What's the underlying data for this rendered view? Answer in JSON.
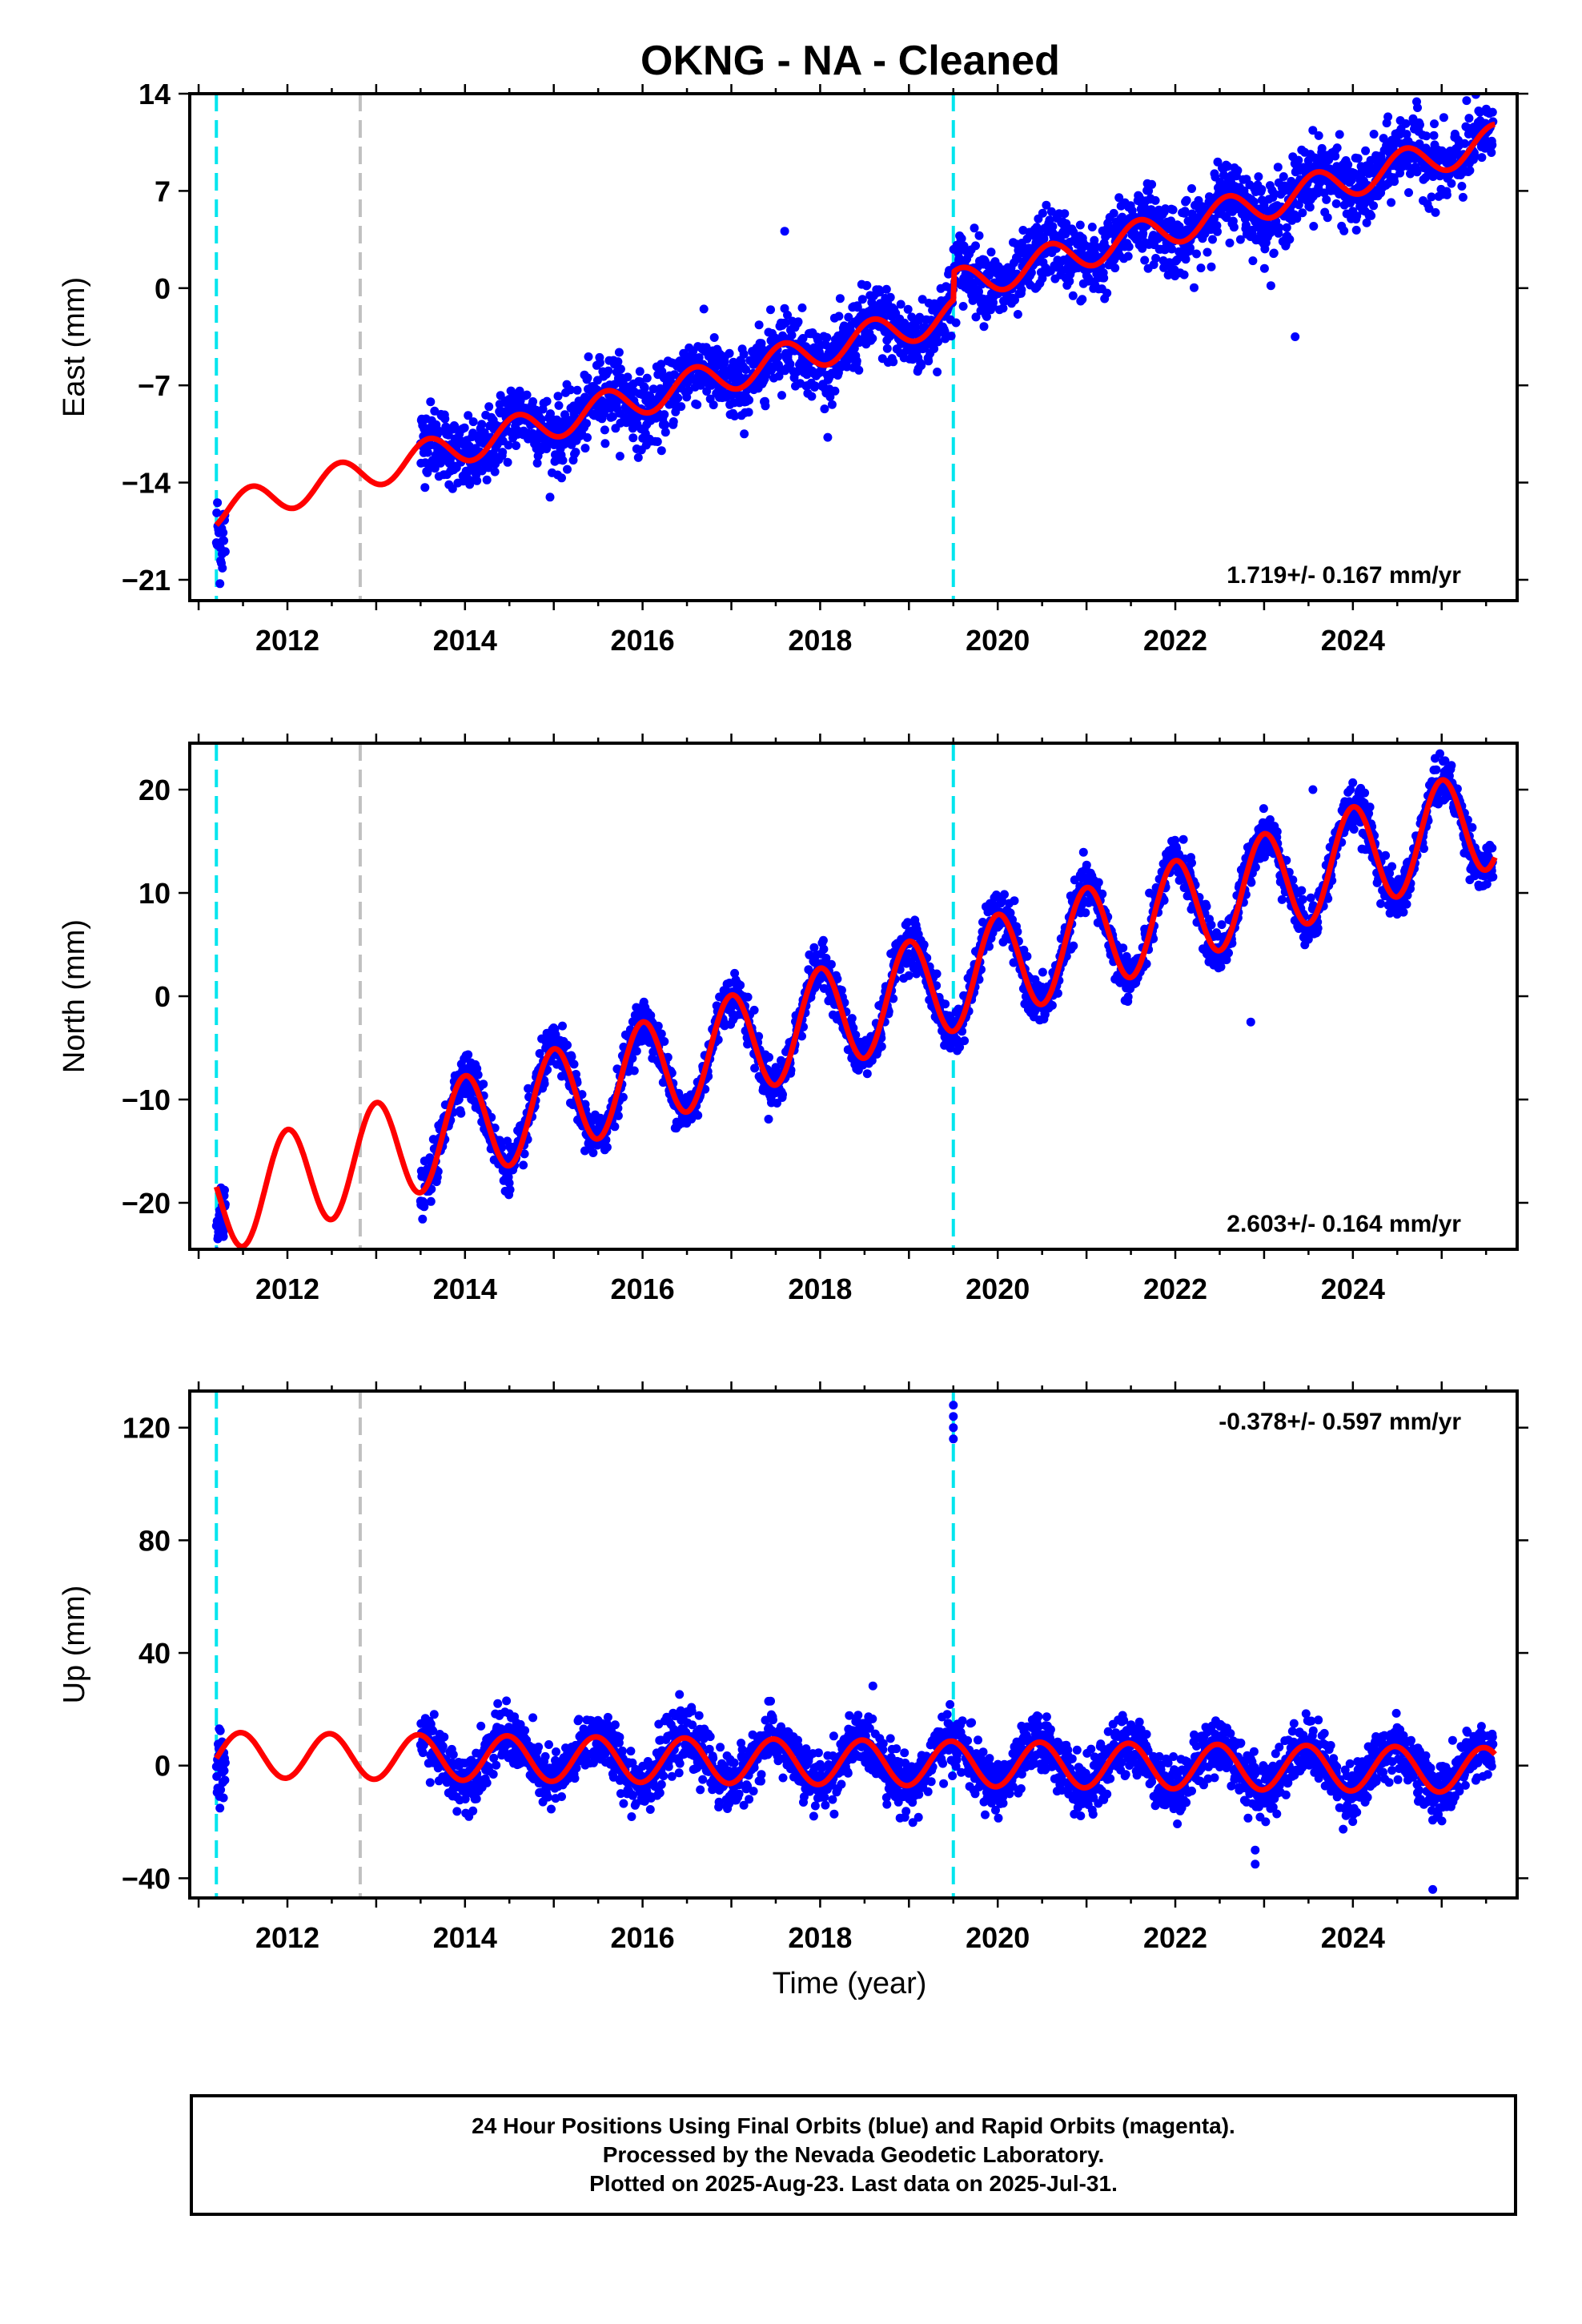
{
  "title": "OKNG  - NA - Cleaned",
  "xlabel": "Time (year)",
  "footer": {
    "line1": "24 Hour Positions Using Final Orbits (blue) and Rapid Orbits (magenta).",
    "line2": "Processed by the Nevada Geodetic Laboratory.",
    "line3": "Plotted on 2025-Aug-23. Last data on 2025-Jul-31."
  },
  "colors": {
    "data": "#0000ff",
    "model": "#ff0000",
    "equipment_change": "#00e5ee",
    "other_change": "#c0c0c0",
    "frame": "#000000"
  },
  "chart_data": [
    {
      "type": "scatter",
      "name": "east",
      "ylabel": "East (mm)",
      "xlim": [
        2010.9,
        2025.85
      ],
      "ylim": [
        -22.5,
        14
      ],
      "yticks": [
        -21,
        -14,
        -7,
        0,
        7,
        14
      ],
      "xticks": [
        2012,
        2014,
        2016,
        2018,
        2020,
        2022,
        2024
      ],
      "rate_label": "1.719+/- 0.167 mm/yr",
      "rate_position": "bottom-right",
      "dashed_lines": [
        {
          "x": 2011.2,
          "color": "cyan"
        },
        {
          "x": 2012.82,
          "color": "gray"
        },
        {
          "x": 2019.5,
          "color": "cyan"
        }
      ],
      "model_steps": [
        {
          "x": 2019.5,
          "delta": 2
        }
      ],
      "data_start": 2013.5,
      "data_end": 2025.58,
      "early_data": {
        "start": 2011.2,
        "end": 2011.3,
        "y": -17.8
      },
      "trend_rate": 1.719,
      "trend_intercept_at_2016": -7.9,
      "seasonal_amplitude": 1.2,
      "seasonal_phase": 2.6,
      "noise": 1.3,
      "outliers": [
        {
          "x": 2017.6,
          "y": 4.1
        },
        {
          "x": 2023.35,
          "y": -3.5
        }
      ]
    },
    {
      "type": "scatter",
      "name": "north",
      "ylabel": "North (mm)",
      "xlim": [
        2010.9,
        2025.85
      ],
      "ylim": [
        -24.5,
        24.5
      ],
      "yticks": [
        -20,
        -10,
        0,
        10,
        20
      ],
      "xticks": [
        2012,
        2014,
        2016,
        2018,
        2020,
        2022,
        2024
      ],
      "rate_label": "2.603+/- 0.164 mm/yr",
      "rate_position": "bottom-right",
      "dashed_lines": [
        {
          "x": 2011.2,
          "color": "cyan"
        },
        {
          "x": 2012.82,
          "color": "gray"
        },
        {
          "x": 2019.5,
          "color": "cyan"
        }
      ],
      "model_steps": [],
      "data_start": 2013.5,
      "data_end": 2025.58,
      "early_data": {
        "start": 2011.2,
        "end": 2011.3,
        "y": -21.5
      },
      "trend_rate": 2.603,
      "trend_intercept_at_2016": -7.5,
      "seasonal_amplitude": 5.0,
      "seasonal_phase": 0.0,
      "noise": 1.1,
      "outliers": [
        {
          "x": 2022.85,
          "y": -2.5
        },
        {
          "x": 2023.55,
          "y": 20
        }
      ]
    },
    {
      "type": "scatter",
      "name": "up",
      "ylabel": "Up (mm)",
      "xlim": [
        2010.9,
        2025.85
      ],
      "ylim": [
        -47,
        133
      ],
      "yticks": [
        -40,
        0,
        40,
        80,
        120
      ],
      "xticks": [
        2012,
        2014,
        2016,
        2018,
        2020,
        2022,
        2024
      ],
      "rate_label": "-0.378+/- 0.597 mm/yr",
      "rate_position": "top-right",
      "dashed_lines": [
        {
          "x": 2011.2,
          "color": "cyan"
        },
        {
          "x": 2012.82,
          "color": "gray"
        },
        {
          "x": 2019.5,
          "color": "cyan"
        }
      ],
      "model_steps": [],
      "data_start": 2013.5,
      "data_end": 2025.58,
      "early_data": {
        "start": 2011.2,
        "end": 2011.3,
        "y": -2
      },
      "trend_rate": -0.378,
      "trend_intercept_at_2016": 2.0,
      "seasonal_amplitude": 8.0,
      "seasonal_phase": 3.3,
      "noise": 5.0,
      "outliers": [
        {
          "x": 2019.5,
          "y": 128
        },
        {
          "x": 2019.5,
          "y": 124
        },
        {
          "x": 2019.5,
          "y": 120
        },
        {
          "x": 2019.5,
          "y": 116
        },
        {
          "x": 2022.9,
          "y": -30
        },
        {
          "x": 2022.9,
          "y": -35
        },
        {
          "x": 2024.9,
          "y": -44
        }
      ]
    }
  ]
}
